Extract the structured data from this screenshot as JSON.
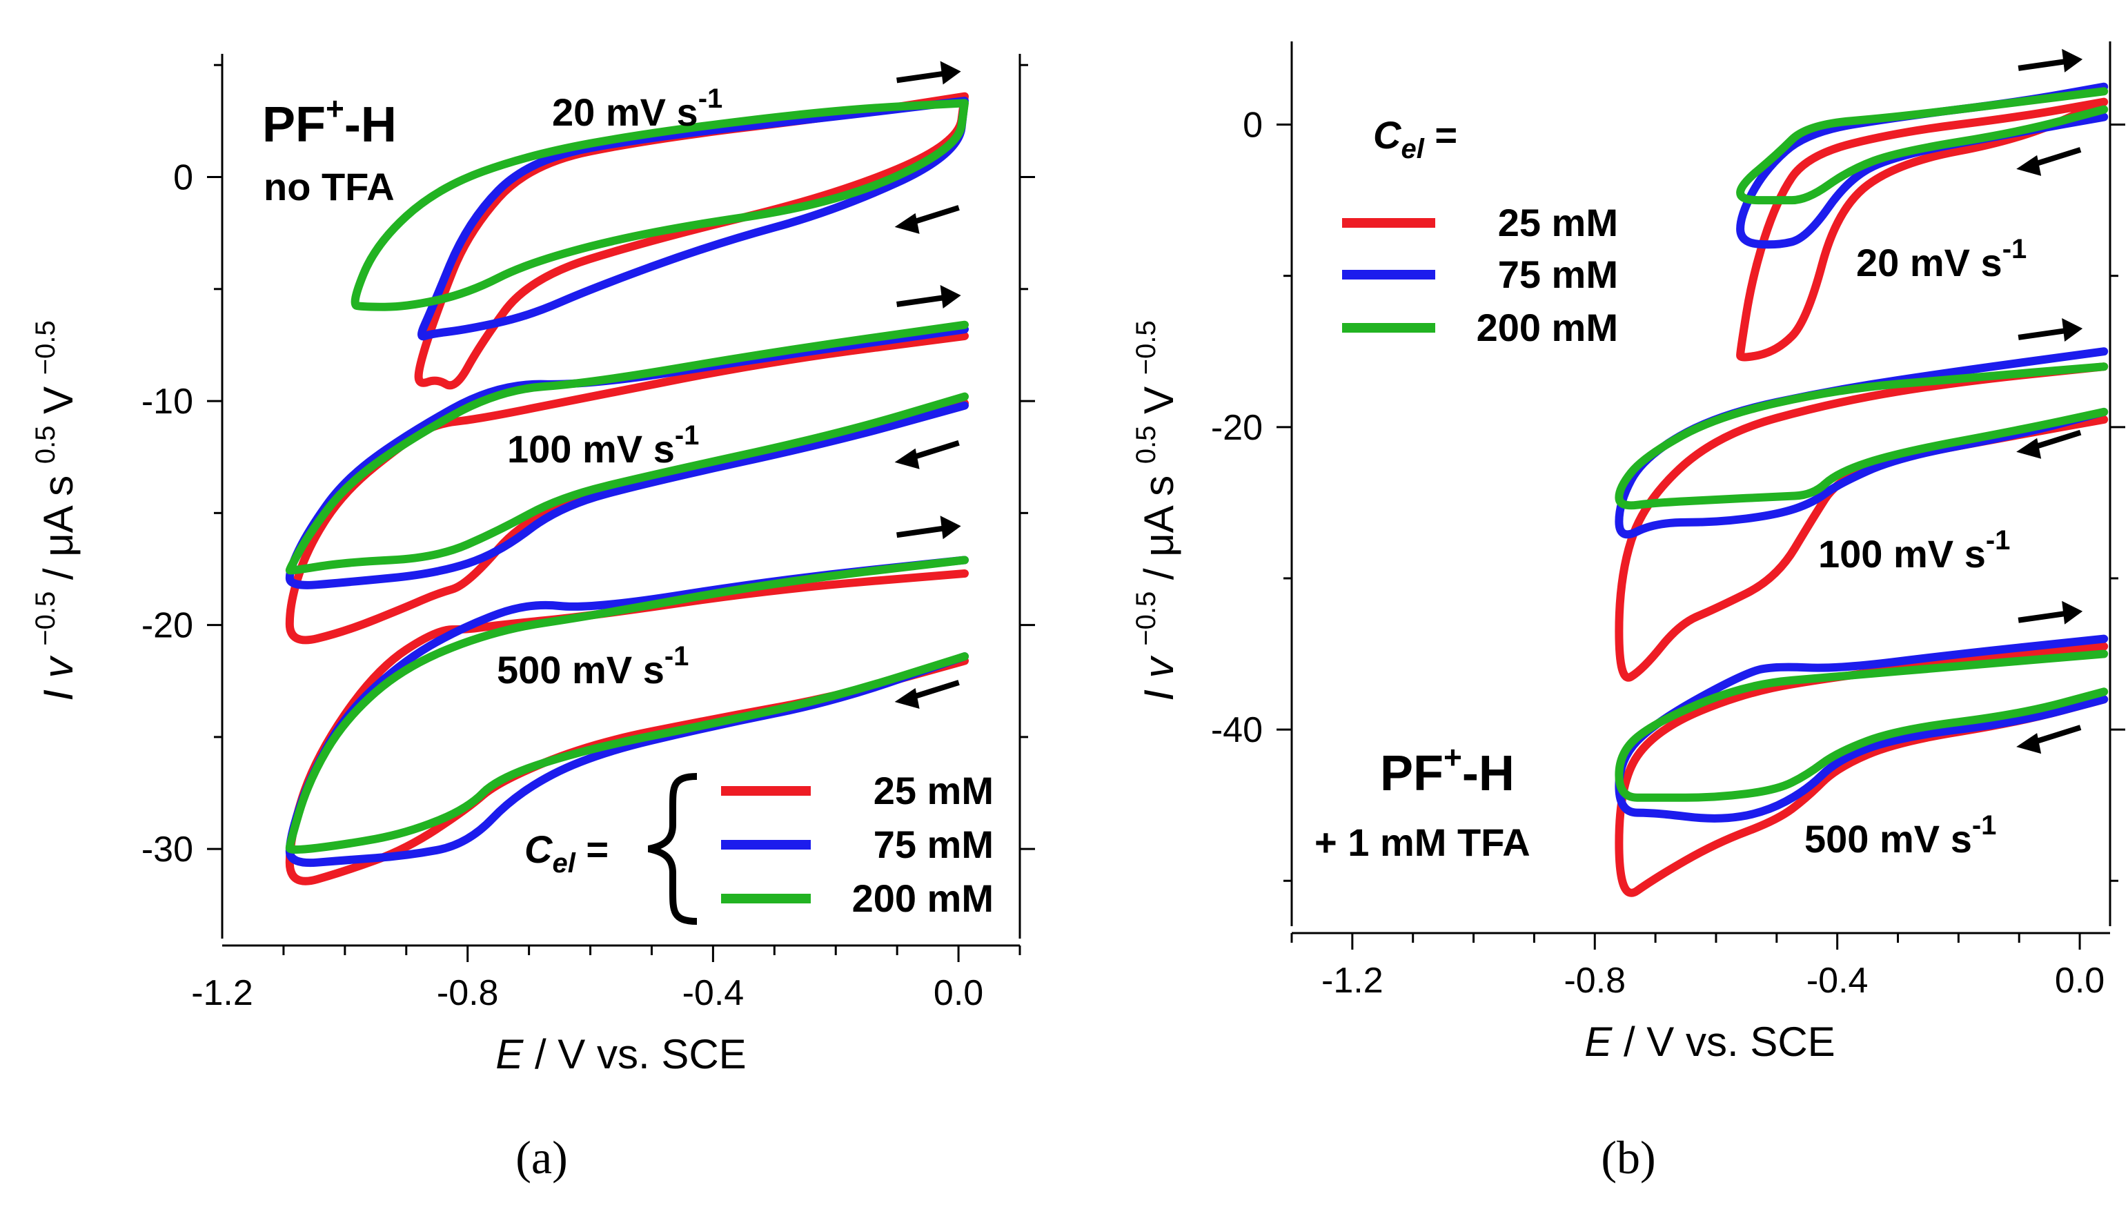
{
  "figure": {
    "colors": {
      "c25": "#ee1c24",
      "c75": "#1c1ced",
      "c200": "#22b322"
    }
  },
  "chart_data": [
    {
      "type": "line",
      "panel_label": "(a)",
      "title": "PF",
      "title_sup": "+",
      "title_suffix": "-H",
      "subtitle": "no TFA",
      "xlabel_italic": "E",
      "xlabel_rest": " / V vs. SCE",
      "ylabel": "I v^-0.5 / μA s^0.5 V^-0.5",
      "ylabel_parts": {
        "i": "I",
        "v": "v",
        "exp1": "−0.5",
        "mid": " / μA s",
        "exp2": "0.5",
        "v2": " V",
        "exp3": "−0.5"
      },
      "xlim": [
        -1.2,
        0.1
      ],
      "ylim": [
        -34,
        5.5
      ],
      "xticks": [
        -1.2,
        -0.8,
        -0.4,
        0.0
      ],
      "xtick_labels": [
        "-1.2",
        "-0.8",
        "-0.4",
        "0.0"
      ],
      "yticks": [
        0,
        -10,
        -20,
        -30
      ],
      "ytick_labels": [
        "0",
        "-10",
        "-20",
        "-30"
      ],
      "rate_labels": [
        {
          "text": "20 mV s",
          "sup": "-1",
          "x": -0.7,
          "y": 3.3
        },
        {
          "text": "100 mV s",
          "sup": "-1",
          "x": -0.62,
          "y": -11.8
        },
        {
          "text": "500 mV s",
          "sup": "-1",
          "x": -0.73,
          "y": -22.2
        }
      ],
      "legend": {
        "prefix": "C",
        "prefix_sub": "el",
        "prefix_suffix": " =",
        "entries": [
          {
            "label": "25 mM",
            "color": "#ee1c24"
          },
          {
            "label": "75 mM",
            "color": "#1c1ced"
          },
          {
            "label": "200 mM",
            "color": "#22b322"
          }
        ]
      },
      "series": [
        {
          "name": "25 mM, 20 mV/s",
          "color": "#ee1c24",
          "x": [
            0.01,
            -0.2,
            -0.5,
            -0.7,
            -0.8,
            -0.85,
            -0.88,
            -0.88,
            -0.85,
            -0.82,
            -0.78,
            -0.7,
            -0.5,
            -0.2,
            0.0,
            0.01
          ],
          "y": [
            3.6,
            2.7,
            1.7,
            0.6,
            -2.5,
            -6.0,
            -8.5,
            -9.3,
            -9.0,
            -9.5,
            -7.5,
            -4.5,
            -2.8,
            -0.8,
            1.5,
            3.6
          ]
        },
        {
          "name": "75 mM, 20 mV/s",
          "color": "#1c1ced",
          "x": [
            0.01,
            -0.2,
            -0.5,
            -0.7,
            -0.8,
            -0.86,
            -0.88,
            -0.86,
            -0.8,
            -0.7,
            -0.6,
            -0.4,
            -0.2,
            0.0,
            0.01
          ],
          "y": [
            3.4,
            2.7,
            1.8,
            0.8,
            -2.0,
            -6.0,
            -7.2,
            -7.0,
            -6.8,
            -6.2,
            -5.0,
            -3.0,
            -1.5,
            1.0,
            3.4
          ]
        },
        {
          "name": "200 mM, 20 mV/s",
          "color": "#22b322",
          "x": [
            0.01,
            -0.2,
            -0.5,
            -0.7,
            -0.85,
            -0.95,
            -0.99,
            -0.97,
            -0.9,
            -0.8,
            -0.7,
            -0.5,
            -0.2,
            0.0,
            0.01
          ],
          "y": [
            3.3,
            3.0,
            2.0,
            1.0,
            -0.5,
            -3.0,
            -5.7,
            -5.8,
            -5.8,
            -5.2,
            -3.8,
            -2.4,
            -1.2,
            1.3,
            3.3
          ]
        },
        {
          "name": "25 mM, 100 mV/s",
          "color": "#ee1c24",
          "x": [
            0.01,
            -0.3,
            -0.6,
            -0.78,
            -0.85,
            -0.9,
            -1.0,
            -1.06,
            -1.09,
            -1.09,
            -1.0,
            -0.9,
            -0.85,
            -0.8,
            -0.7,
            -0.5,
            -0.2,
            0.01
          ],
          "y": [
            -7.1,
            -8.2,
            -9.8,
            -10.8,
            -11.0,
            -11.8,
            -14.0,
            -16.5,
            -19.0,
            -20.9,
            -20.3,
            -19.2,
            -18.6,
            -18.2,
            -15.0,
            -13.5,
            -11.8,
            -10.1
          ]
        },
        {
          "name": "75 mM, 100 mV/s",
          "color": "#1c1ced",
          "x": [
            0.01,
            -0.3,
            -0.6,
            -0.75,
            -0.9,
            -1.0,
            -1.06,
            -1.09,
            -1.09,
            -1.0,
            -0.85,
            -0.75,
            -0.65,
            -0.5,
            -0.2,
            0.01
          ],
          "y": [
            -6.8,
            -8.0,
            -9.3,
            -9.2,
            -11.5,
            -13.5,
            -15.8,
            -17.5,
            -18.3,
            -18.1,
            -17.7,
            -16.8,
            -14.7,
            -13.6,
            -11.8,
            -10.2
          ]
        },
        {
          "name": "200 mM, 100 mV/s",
          "color": "#22b322",
          "x": [
            0.01,
            -0.3,
            -0.6,
            -0.75,
            -0.9,
            -1.0,
            -1.06,
            -1.09,
            -1.09,
            -1.0,
            -0.85,
            -0.75,
            -0.65,
            -0.5,
            -0.2,
            0.01
          ],
          "y": [
            -6.6,
            -7.8,
            -9.2,
            -9.5,
            -11.8,
            -13.8,
            -16.0,
            -17.5,
            -17.6,
            -17.2,
            -17.0,
            -15.8,
            -14.3,
            -13.3,
            -11.5,
            -9.8
          ]
        },
        {
          "name": "25 mM, 500 mV/s",
          "color": "#ee1c24",
          "x": [
            0.01,
            -0.3,
            -0.6,
            -0.75,
            -0.8,
            -0.85,
            -0.95,
            -1.05,
            -1.09,
            -1.09,
            -1.0,
            -0.9,
            -0.8,
            -0.75,
            -0.6,
            -0.4,
            -0.2,
            0.01
          ],
          "y": [
            -17.7,
            -18.4,
            -19.6,
            -20.0,
            -20.2,
            -20.2,
            -22.0,
            -26.0,
            -29.5,
            -31.7,
            -31.0,
            -30.0,
            -28.2,
            -27.0,
            -25.3,
            -24.2,
            -23.2,
            -21.6
          ]
        },
        {
          "name": "75 mM, 500 mV/s",
          "color": "#1c1ced",
          "x": [
            0.01,
            -0.3,
            -0.6,
            -0.7,
            -0.8,
            -0.9,
            -1.0,
            -1.06,
            -1.09,
            -1.09,
            -1.0,
            -0.9,
            -0.8,
            -0.72,
            -0.6,
            -0.4,
            -0.2,
            0.01
          ],
          "y": [
            -17.1,
            -18.0,
            -19.3,
            -19.0,
            -20.0,
            -21.5,
            -24.0,
            -27.0,
            -29.5,
            -30.7,
            -30.5,
            -30.3,
            -29.8,
            -27.5,
            -25.8,
            -24.5,
            -23.4,
            -21.4
          ]
        },
        {
          "name": "200 mM, 500 mV/s",
          "color": "#22b322",
          "x": [
            0.01,
            -0.3,
            -0.6,
            -0.75,
            -0.9,
            -1.0,
            -1.06,
            -1.09,
            -1.09,
            -1.0,
            -0.9,
            -0.8,
            -0.75,
            -0.6,
            -0.4,
            -0.2,
            0.01
          ],
          "y": [
            -17.1,
            -18.1,
            -19.6,
            -20.2,
            -21.8,
            -24.2,
            -27.0,
            -29.8,
            -30.1,
            -29.8,
            -29.3,
            -28.2,
            -26.8,
            -25.5,
            -24.4,
            -23.2,
            -21.4
          ]
        }
      ],
      "arrows": [
        {
          "dir": "right",
          "x": -0.05,
          "y": 4.5
        },
        {
          "dir": "left",
          "x": -0.05,
          "y": -1.8
        },
        {
          "dir": "right",
          "x": -0.05,
          "y": -5.5
        },
        {
          "dir": "left",
          "x": -0.05,
          "y": -12.3
        },
        {
          "dir": "right",
          "x": -0.05,
          "y": -15.8
        },
        {
          "dir": "left",
          "x": -0.05,
          "y": -23.0
        }
      ]
    },
    {
      "type": "line",
      "panel_label": "(b)",
      "title": "PF",
      "title_sup": "+",
      "title_suffix": "-H",
      "subtitle": "+ 1 mM TFA",
      "xlabel_italic": "E",
      "xlabel_rest": " / V vs. SCE",
      "ylabel": "I v^-0.5 / μA s^0.5 V^-0.5",
      "ylabel_parts": {
        "i": "I",
        "v": "v",
        "exp1": "−0.5",
        "mid": " / μA s",
        "exp2": "0.5",
        "v2": " V",
        "exp3": "−0.5"
      },
      "xlim": [
        -1.3,
        0.05
      ],
      "ylim": [
        -53,
        5.5
      ],
      "xticks": [
        -1.2,
        -0.8,
        -0.4,
        0.0
      ],
      "xtick_labels": [
        "-1.2",
        "-0.8",
        "-0.4",
        "0.0"
      ],
      "yticks": [
        0,
        -20,
        -40
      ],
      "ytick_labels": [
        "0",
        "-20",
        "-40"
      ],
      "rate_labels": [
        {
          "text": "20 mV s",
          "sup": "-1",
          "x": -0.31,
          "y": -9.8
        },
        {
          "text": "100 mV s",
          "sup": "-1",
          "x": -0.38,
          "y": -29.0
        },
        {
          "text": "500 mV s",
          "sup": "-1",
          "x": -0.4,
          "y": -47.5
        }
      ],
      "legend": {
        "prefix": "C",
        "prefix_sub": "el",
        "prefix_suffix": " =",
        "entries": [
          {
            "label": "25 mM",
            "color": "#ee1c24"
          },
          {
            "label": "75 mM",
            "color": "#1c1ced"
          },
          {
            "label": "200 mM",
            "color": "#22b322"
          }
        ]
      },
      "series": [
        {
          "name": "25 mM, 20 mV/s",
          "color": "#ee1c24",
          "x": [
            0.04,
            -0.1,
            -0.3,
            -0.45,
            -0.5,
            -0.54,
            -0.56,
            -0.56,
            -0.5,
            -0.45,
            -0.4,
            -0.3,
            -0.1,
            0.04
          ],
          "y": [
            1.5,
            0.5,
            -0.5,
            -2.0,
            -5.0,
            -10.0,
            -15.0,
            -15.5,
            -15.0,
            -13.0,
            -5.5,
            -2.5,
            -1.0,
            1.5
          ]
        },
        {
          "name": "75 mM, 20 mV/s",
          "color": "#1c1ced",
          "x": [
            0.04,
            -0.1,
            -0.3,
            -0.45,
            -0.52,
            -0.56,
            -0.56,
            -0.5,
            -0.45,
            -0.38,
            -0.3,
            -0.1,
            0.04
          ],
          "y": [
            2.5,
            1.5,
            0.5,
            -0.5,
            -3.0,
            -6.0,
            -7.8,
            -8.0,
            -7.5,
            -3.5,
            -2.0,
            -0.5,
            0.5
          ]
        },
        {
          "name": "200 mM, 20 mV/s",
          "color": "#22b322",
          "x": [
            0.04,
            -0.1,
            -0.3,
            -0.45,
            -0.5,
            -0.56,
            -0.56,
            -0.5,
            -0.45,
            -0.38,
            -0.3,
            -0.1,
            0.04
          ],
          "y": [
            2.2,
            1.5,
            0.5,
            0.0,
            -2.0,
            -4.0,
            -5.0,
            -5.0,
            -5.0,
            -3.0,
            -1.8,
            -0.5,
            1.0
          ]
        },
        {
          "name": "25 mM, 100 mV/s",
          "color": "#ee1c24",
          "x": [
            0.04,
            -0.2,
            -0.4,
            -0.6,
            -0.72,
            -0.76,
            -0.76,
            -0.72,
            -0.66,
            -0.6,
            -0.5,
            -0.44,
            -0.4,
            -0.3,
            -0.1,
            0.04
          ],
          "y": [
            -16.0,
            -17.0,
            -18.3,
            -20.5,
            -25.0,
            -30.0,
            -37.0,
            -36.0,
            -33.0,
            -32.0,
            -30.0,
            -26.0,
            -23.5,
            -22.0,
            -20.5,
            -19.5
          ]
        },
        {
          "name": "75 mM, 100 mV/s",
          "color": "#1c1ced",
          "x": [
            0.04,
            -0.2,
            -0.4,
            -0.6,
            -0.72,
            -0.76,
            -0.76,
            -0.7,
            -0.6,
            -0.5,
            -0.44,
            -0.4,
            -0.3,
            -0.1,
            0.04
          ],
          "y": [
            -15.0,
            -16.3,
            -17.5,
            -19.2,
            -22.0,
            -25.0,
            -27.5,
            -26.3,
            -26.3,
            -25.8,
            -25.0,
            -23.8,
            -22.0,
            -20.5,
            -19.0
          ]
        },
        {
          "name": "200 mM, 100 mV/s",
          "color": "#22b322",
          "x": [
            0.04,
            -0.2,
            -0.4,
            -0.6,
            -0.72,
            -0.76,
            -0.76,
            -0.7,
            -0.6,
            -0.5,
            -0.44,
            -0.4,
            -0.3,
            -0.1,
            0.04
          ],
          "y": [
            -16.0,
            -16.8,
            -17.5,
            -19.3,
            -22.0,
            -24.0,
            -25.3,
            -25.0,
            -24.8,
            -24.6,
            -24.5,
            -23.0,
            -21.7,
            -20.2,
            -19.0
          ]
        },
        {
          "name": "25 mM, 500 mV/s",
          "color": "#ee1c24",
          "x": [
            0.04,
            -0.2,
            -0.4,
            -0.55,
            -0.7,
            -0.76,
            -0.76,
            -0.7,
            -0.6,
            -0.5,
            -0.45,
            -0.4,
            -0.3,
            -0.1,
            0.04
          ],
          "y": [
            -34.5,
            -35.5,
            -36.5,
            -37.5,
            -40.0,
            -43.5,
            -51.5,
            -49.8,
            -47.5,
            -46.0,
            -44.5,
            -42.5,
            -40.8,
            -39.5,
            -38.0
          ]
        },
        {
          "name": "75 mM, 500 mV/s",
          "color": "#1c1ced",
          "x": [
            0.04,
            -0.2,
            -0.4,
            -0.5,
            -0.55,
            -0.7,
            -0.76,
            -0.76,
            -0.7,
            -0.6,
            -0.52,
            -0.45,
            -0.4,
            -0.3,
            -0.1,
            0.04
          ],
          "y": [
            -34.0,
            -35.0,
            -36.0,
            -35.8,
            -36.2,
            -39.5,
            -42.0,
            -45.5,
            -45.5,
            -46.0,
            -45.5,
            -44.0,
            -42.0,
            -40.5,
            -39.5,
            -38.0
          ]
        },
        {
          "name": "200 mM, 500 mV/s",
          "color": "#22b322",
          "x": [
            0.04,
            -0.2,
            -0.4,
            -0.55,
            -0.7,
            -0.76,
            -0.76,
            -0.7,
            -0.6,
            -0.5,
            -0.45,
            -0.4,
            -0.3,
            -0.1,
            0.04
          ],
          "y": [
            -35.0,
            -35.8,
            -36.5,
            -37.0,
            -39.5,
            -41.5,
            -44.5,
            -44.5,
            -44.5,
            -44.0,
            -43.0,
            -41.5,
            -40.0,
            -39.0,
            -37.5
          ]
        }
      ],
      "arrows": [
        {
          "dir": "right",
          "x": -0.05,
          "y": 4.0
        },
        {
          "dir": "left",
          "x": -0.05,
          "y": -2.3
        },
        {
          "dir": "right",
          "x": -0.05,
          "y": -13.8
        },
        {
          "dir": "left",
          "x": -0.05,
          "y": -21.0
        },
        {
          "dir": "right",
          "x": -0.05,
          "y": -32.5
        },
        {
          "dir": "left",
          "x": -0.05,
          "y": -40.5
        }
      ]
    }
  ]
}
